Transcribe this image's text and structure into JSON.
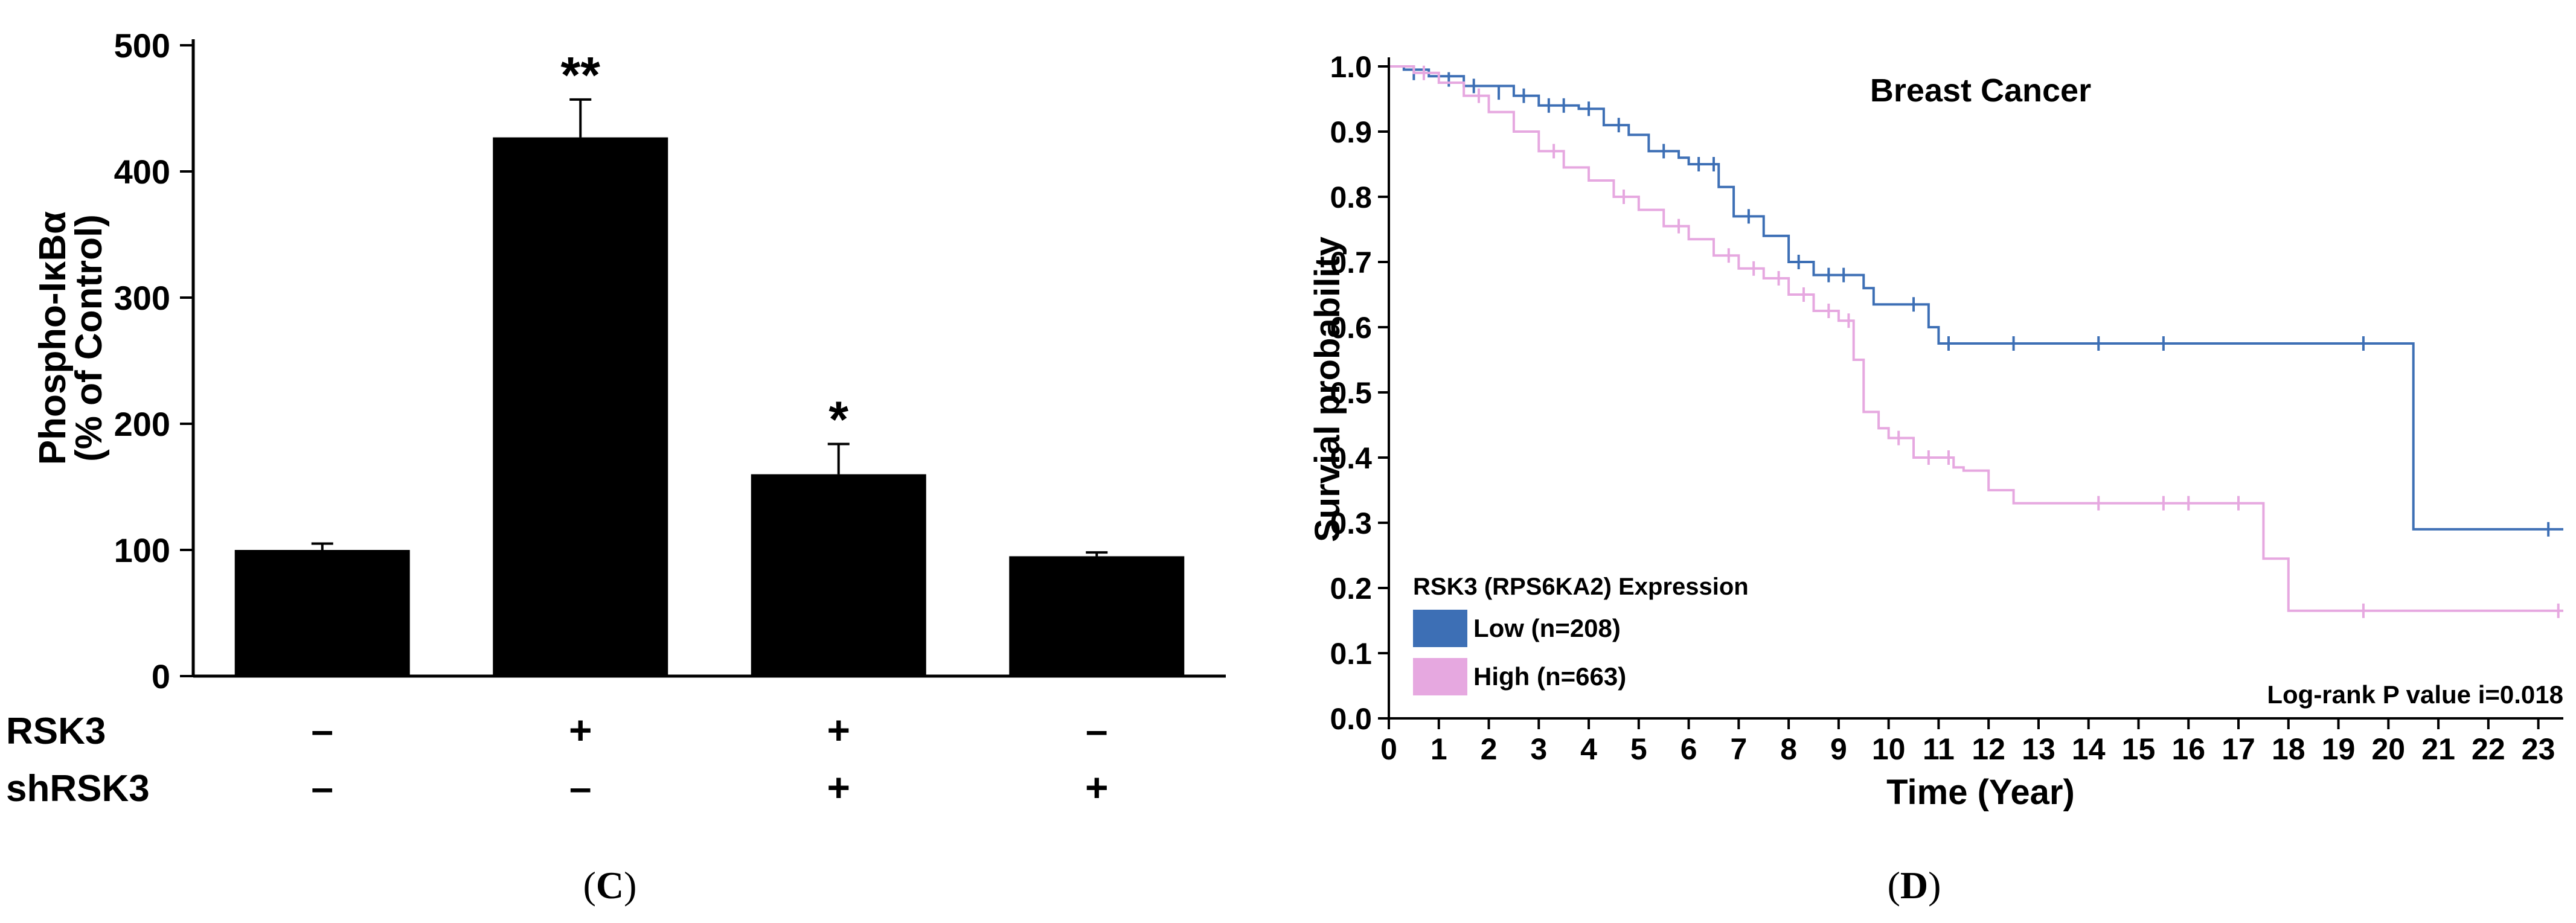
{
  "chart_data": [
    {
      "panel_label": "C",
      "type": "bar",
      "ylabel_line1": "Phospho-IκBα",
      "ylabel_line2": "(% of Control)",
      "ylim": [
        0,
        500
      ],
      "yticks": [
        "0",
        "100",
        "200",
        "300",
        "400",
        "500"
      ],
      "bars": [
        {
          "value": 100,
          "error": 5,
          "significance": ""
        },
        {
          "value": 427,
          "error": 30,
          "significance": "**"
        },
        {
          "value": 160,
          "error": 24,
          "significance": "*"
        },
        {
          "value": 95,
          "error": 3,
          "significance": ""
        }
      ],
      "conditions": [
        {
          "label": "RSK3",
          "signs": [
            "–",
            "+",
            "+",
            "–"
          ]
        },
        {
          "label": "shRSK3",
          "signs": [
            "–",
            "–",
            "+",
            "+"
          ]
        }
      ]
    },
    {
      "panel_label": "D",
      "type": "line",
      "title": "Breast Cancer",
      "xlabel": "Time (Year)",
      "ylabel": "Survial probability",
      "xlim": [
        0,
        23.5
      ],
      "ylim": [
        0,
        1.0
      ],
      "xticks": [
        "0",
        "1",
        "2",
        "3",
        "4",
        "5",
        "6",
        "7",
        "8",
        "9",
        "10",
        "11",
        "12",
        "13",
        "14",
        "15",
        "16",
        "17",
        "18",
        "19",
        "20",
        "21",
        "22",
        "23"
      ],
      "yticks": [
        "0.0",
        "0.1",
        "0.2",
        "0.3",
        "0.4",
        "0.5",
        "0.6",
        "0.7",
        "0.8",
        "0.9",
        "1.0"
      ],
      "legend_title": "RSK3 (RPS6KA2) Expression",
      "annotation": "Log-rank P value i=0.018",
      "series": [
        {
          "name": "Low (n=208)",
          "color": "#3d6fb5",
          "steps": [
            [
              0,
              1.0
            ],
            [
              0.3,
              0.995
            ],
            [
              0.8,
              0.985
            ],
            [
              1.5,
              0.97
            ],
            [
              2.5,
              0.955
            ],
            [
              3.0,
              0.94
            ],
            [
              3.8,
              0.935
            ],
            [
              4.3,
              0.91
            ],
            [
              4.8,
              0.895
            ],
            [
              5.2,
              0.87
            ],
            [
              5.8,
              0.86
            ],
            [
              6.0,
              0.85
            ],
            [
              6.6,
              0.815
            ],
            [
              6.9,
              0.77
            ],
            [
              7.5,
              0.74
            ],
            [
              8.0,
              0.7
            ],
            [
              8.5,
              0.68
            ],
            [
              9.5,
              0.66
            ],
            [
              9.7,
              0.635
            ],
            [
              10.8,
              0.6
            ],
            [
              11.0,
              0.575
            ],
            [
              20.5,
              0.29
            ],
            [
              23.5,
              0.29
            ]
          ],
          "censors": [
            [
              0.5,
              0.99
            ],
            [
              1.2,
              0.98
            ],
            [
              1.7,
              0.97
            ],
            [
              2.2,
              0.96
            ],
            [
              2.7,
              0.955
            ],
            [
              3.2,
              0.94
            ],
            [
              3.5,
              0.94
            ],
            [
              4.0,
              0.935
            ],
            [
              4.6,
              0.91
            ],
            [
              5.5,
              0.87
            ],
            [
              6.2,
              0.85
            ],
            [
              6.5,
              0.85
            ],
            [
              7.2,
              0.77
            ],
            [
              8.2,
              0.7
            ],
            [
              8.8,
              0.68
            ],
            [
              9.1,
              0.68
            ],
            [
              10.5,
              0.635
            ],
            [
              11.2,
              0.575
            ],
            [
              12.5,
              0.575
            ],
            [
              14.2,
              0.575
            ],
            [
              15.5,
              0.575
            ],
            [
              19.5,
              0.575
            ],
            [
              23.2,
              0.29
            ]
          ]
        },
        {
          "name": "High (n=663)",
          "color": "#e6a8e0",
          "steps": [
            [
              0,
              1.0
            ],
            [
              0.5,
              0.99
            ],
            [
              1.0,
              0.975
            ],
            [
              1.5,
              0.955
            ],
            [
              2.0,
              0.93
            ],
            [
              2.5,
              0.9
            ],
            [
              3.0,
              0.87
            ],
            [
              3.5,
              0.845
            ],
            [
              4.0,
              0.825
            ],
            [
              4.5,
              0.8
            ],
            [
              5.0,
              0.78
            ],
            [
              5.5,
              0.755
            ],
            [
              6.0,
              0.735
            ],
            [
              6.5,
              0.71
            ],
            [
              7.0,
              0.69
            ],
            [
              7.5,
              0.675
            ],
            [
              8.0,
              0.65
            ],
            [
              8.5,
              0.625
            ],
            [
              9.0,
              0.61
            ],
            [
              9.3,
              0.55
            ],
            [
              9.5,
              0.47
            ],
            [
              9.8,
              0.445
            ],
            [
              10.0,
              0.43
            ],
            [
              10.5,
              0.4
            ],
            [
              11.3,
              0.385
            ],
            [
              11.5,
              0.38
            ],
            [
              12.0,
              0.35
            ],
            [
              12.5,
              0.33
            ],
            [
              17.5,
              0.245
            ],
            [
              18.0,
              0.165
            ],
            [
              23.5,
              0.165
            ]
          ],
          "censors": [
            [
              0.7,
              0.99
            ],
            [
              1.8,
              0.955
            ],
            [
              3.3,
              0.87
            ],
            [
              4.7,
              0.8
            ],
            [
              5.8,
              0.755
            ],
            [
              6.8,
              0.71
            ],
            [
              7.3,
              0.69
            ],
            [
              7.8,
              0.675
            ],
            [
              8.3,
              0.65
            ],
            [
              8.8,
              0.625
            ],
            [
              9.2,
              0.61
            ],
            [
              10.2,
              0.43
            ],
            [
              10.8,
              0.4
            ],
            [
              11.2,
              0.4
            ],
            [
              14.2,
              0.33
            ],
            [
              15.5,
              0.33
            ],
            [
              16.0,
              0.33
            ],
            [
              17.0,
              0.33
            ],
            [
              19.5,
              0.165
            ],
            [
              23.4,
              0.165
            ]
          ]
        }
      ]
    }
  ]
}
